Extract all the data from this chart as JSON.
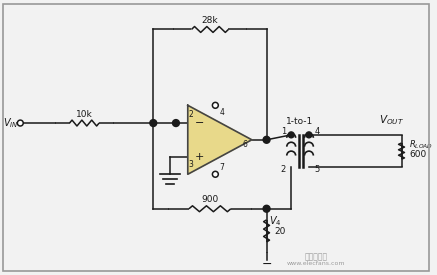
{
  "bg_color": "#f2f2f2",
  "border_color": "#999999",
  "op_amp_fill": "#e8d98a",
  "op_amp_border": "#444444",
  "line_color": "#1a1a1a",
  "resistor_zigzag_amp": 3,
  "resistor_zigzag_n": 6,
  "lw": 1.1,
  "watermark_text": "电子发烧友",
  "watermark_url": "www.elecfans.com"
}
